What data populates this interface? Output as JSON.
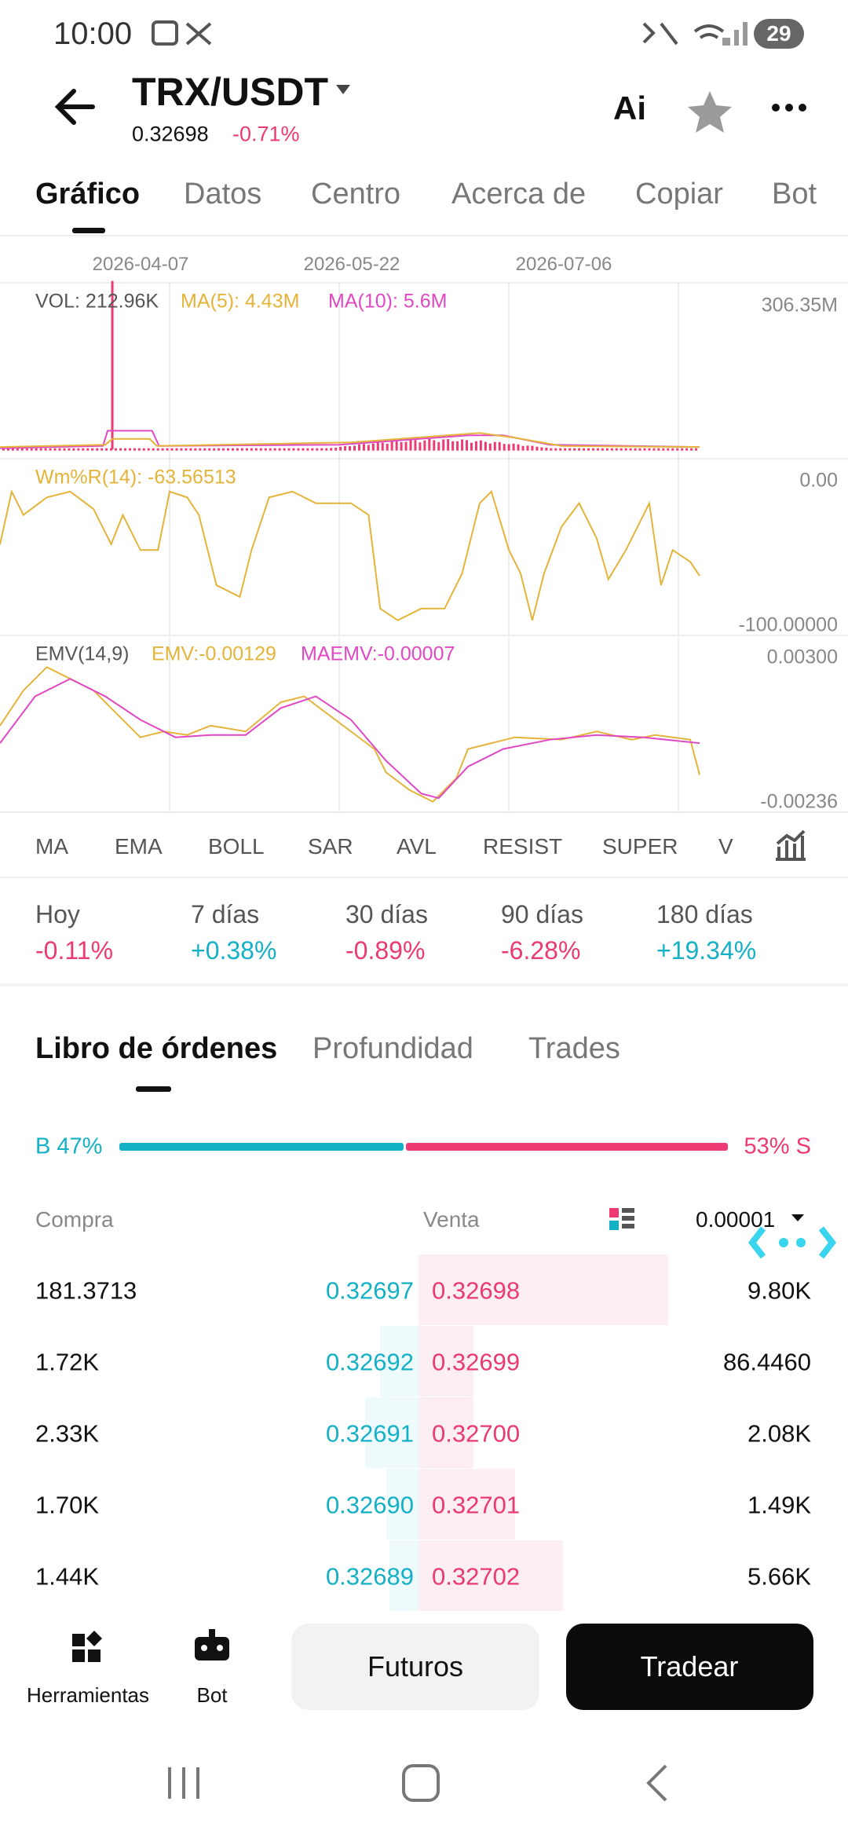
{
  "status_bar": {
    "time": "10:00",
    "battery": "29"
  },
  "header": {
    "pair": "TRX/USDT",
    "price": "0.32698",
    "change": "-0.71%",
    "ai": "Ai"
  },
  "tabs": [
    "Gráfico",
    "Datos",
    "Centro",
    "Acerca de",
    "Copiar",
    "Bot"
  ],
  "chart": {
    "dates": [
      "2026-04-07",
      "2026-05-22",
      "2026-07-06"
    ],
    "vol": {
      "label": "VOL: 212.96K",
      "ma5": "MA(5): 4.43M",
      "ma10": "MA(10): 5.6M",
      "max": "306.35M"
    },
    "wr": {
      "label": "Wm%R(14): -63.56513",
      "top": "0.00",
      "bottom": "-100.00000"
    },
    "emv": {
      "label": "EMV(14,9)",
      "emv": "EMV:-0.00129",
      "maemv": "MAEMV:-0.00007",
      "top": "0.00300",
      "bottom": "-0.00236"
    }
  },
  "indicators": [
    "MA",
    "EMA",
    "BOLL",
    "SAR",
    "AVL",
    "RESIST",
    "SUPER",
    "V"
  ],
  "performance": [
    {
      "label": "Hoy",
      "value": "-0.11%"
    },
    {
      "label": "7 días",
      "value": "+0.38%"
    },
    {
      "label": "30 días",
      "value": "-0.89%"
    },
    {
      "label": "90 días",
      "value": "-6.28%"
    },
    {
      "label": "180 días",
      "value": "+19.34%"
    }
  ],
  "book_tabs": [
    "Libro de órdenes",
    "Profundidad",
    "Trades"
  ],
  "ratio": {
    "buy": "B 47%",
    "sell": "53% S"
  },
  "book": {
    "buy_header": "Compra",
    "sell_header": "Venta",
    "precision": "0.00001",
    "rows": [
      [
        "181.3713",
        "0.32697",
        "0.32698",
        "9.80K"
      ],
      [
        "1.72K",
        "0.32692",
        "0.32699",
        "86.4460"
      ],
      [
        "2.33K",
        "0.32691",
        "0.32700",
        "2.08K"
      ],
      [
        "1.70K",
        "0.32690",
        "0.32701",
        "1.49K"
      ],
      [
        "1.44K",
        "0.32689",
        "0.32702",
        "5.66K"
      ]
    ]
  },
  "bottom_bar": {
    "tools": "Herramientas",
    "bot": "Bot",
    "futures": "Futuros",
    "trade": "Tradear"
  }
}
